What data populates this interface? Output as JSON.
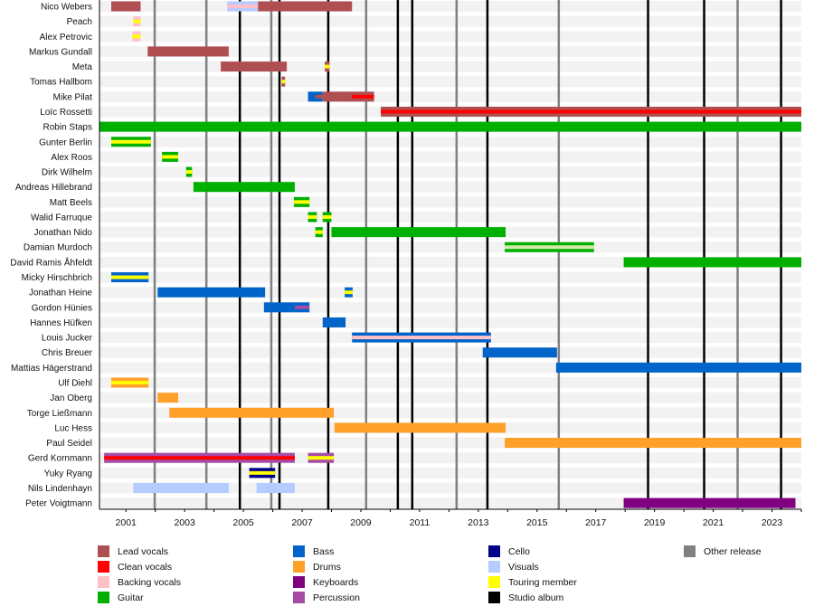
{
  "chart_data": {
    "type": "timeline",
    "x_range": [
      2000.1,
      2024.0
    ],
    "ticks": [
      2001,
      2003,
      2005,
      2007,
      2009,
      2011,
      2013,
      2015,
      2017,
      2019,
      2021,
      2023
    ],
    "minor_ticks_every_year": true,
    "roles": {
      "lead": {
        "label": "Lead vocals",
        "color": "#b04f52"
      },
      "clean": {
        "label": "Clean vocals",
        "color": "#ff0000"
      },
      "backing": {
        "label": "Backing vocals",
        "color": "#ffc0c8"
      },
      "guitar": {
        "label": "Guitar",
        "color": "#00b000"
      },
      "bass": {
        "label": "Bass",
        "color": "#0064c8"
      },
      "drums": {
        "label": "Drums",
        "color": "#ffa02a"
      },
      "keyboards": {
        "label": "Keyboards",
        "color": "#800080"
      },
      "percussion": {
        "label": "Percussion",
        "color": "#a64ca6"
      },
      "cello": {
        "label": "Cello",
        "color": "#00008b"
      },
      "visuals": {
        "label": "Visuals",
        "color": "#b4ccff"
      },
      "touring": {
        "label": "Touring member",
        "color": "#ffff00"
      },
      "studio": {
        "label": "Studio album",
        "color": "#000000"
      },
      "other": {
        "label": "Other release",
        "color": "#808080"
      }
    },
    "legend_columns": [
      [
        "lead",
        "clean",
        "backing",
        "guitar"
      ],
      [
        "bass",
        "drums",
        "keyboards",
        "percussion"
      ],
      [
        "cello",
        "visuals",
        "touring",
        "studio"
      ],
      [
        "other"
      ]
    ],
    "studio_albums": [
      2004.88,
      2006.23,
      2007.89,
      2010.26,
      2010.75,
      2013.31,
      2018.78,
      2020.69,
      2023.31
    ],
    "other_releases": [
      2001.98,
      2003.74,
      2005.95,
      2009.18,
      2012.26,
      2015.74,
      2021.83
    ],
    "members": [
      {
        "name": "Nico Webers",
        "bars": [
          {
            "role": "lead",
            "start": 2000.5,
            "end": 2001.5
          },
          {
            "role": "visuals",
            "start": 2004.45,
            "end": 2005.5,
            "stripe": "backing"
          },
          {
            "role": "lead",
            "start": 2005.5,
            "end": 2008.7
          }
        ]
      },
      {
        "name": "Peach",
        "bars": [
          {
            "role": "backing",
            "start": 2001.25,
            "end": 2001.5,
            "stripe": "touring"
          }
        ]
      },
      {
        "name": "Alex Petrovic",
        "bars": [
          {
            "role": "backing",
            "start": 2001.22,
            "end": 2001.5,
            "stripe": "touring"
          }
        ]
      },
      {
        "name": "Markus Gundall",
        "bars": [
          {
            "role": "lead",
            "start": 2001.74,
            "end": 2004.5
          }
        ]
      },
      {
        "name": "Meta",
        "bars": [
          {
            "role": "lead",
            "start": 2004.23,
            "end": 2006.48
          },
          {
            "role": "lead",
            "start": 2007.77,
            "end": 2007.93,
            "stripe": "touring"
          }
        ]
      },
      {
        "name": "Tomas Hallbom",
        "bars": [
          {
            "role": "lead",
            "start": 2006.3,
            "end": 2006.42,
            "stripe": "touring"
          }
        ]
      },
      {
        "name": "Mike Pilat",
        "bars": [
          {
            "role": "bass",
            "start": 2007.2,
            "end": 2007.7
          },
          {
            "role": "lead",
            "start": 2007.7,
            "end": 2009.45
          },
          {
            "role": "lead",
            "start": 2007.45,
            "end": 2007.7,
            "thin": true
          },
          {
            "role": "clean",
            "start": 2008.7,
            "end": 2009.45,
            "thin": true
          }
        ]
      },
      {
        "name": "Loïc Rossetti",
        "bars": [
          {
            "role": "lead",
            "start": 2009.68,
            "end": 2024.0,
            "stripe": "clean"
          }
        ]
      },
      {
        "name": "Robin Staps",
        "bars": [
          {
            "role": "guitar",
            "start": 2000.1,
            "end": 2024.0
          }
        ]
      },
      {
        "name": "Gunter Berlin",
        "bars": [
          {
            "role": "guitar",
            "start": 2000.5,
            "end": 2001.85,
            "stripe": "touring"
          }
        ]
      },
      {
        "name": "Alex Roos",
        "bars": [
          {
            "role": "guitar",
            "start": 2002.23,
            "end": 2002.78,
            "stripe": "touring"
          }
        ]
      },
      {
        "name": "Dirk Wilhelm",
        "bars": [
          {
            "role": "guitar",
            "start": 2003.05,
            "end": 2003.25,
            "stripe": "touring"
          }
        ]
      },
      {
        "name": "Andreas Hillebrand",
        "bars": [
          {
            "role": "guitar",
            "start": 2003.3,
            "end": 2006.75
          }
        ]
      },
      {
        "name": "Matt Beels",
        "bars": [
          {
            "role": "guitar",
            "start": 2006.72,
            "end": 2007.25,
            "stripe": "touring"
          }
        ]
      },
      {
        "name": "Walid Farruque",
        "bars": [
          {
            "role": "guitar",
            "start": 2007.2,
            "end": 2007.5,
            "stripe": "touring"
          },
          {
            "role": "guitar",
            "start": 2007.7,
            "end": 2008.0,
            "stripe": "touring"
          }
        ]
      },
      {
        "name": "Jonathan Nido",
        "bars": [
          {
            "role": "guitar",
            "start": 2007.45,
            "end": 2007.7,
            "stripe": "touring"
          },
          {
            "role": "guitar",
            "start": 2008.0,
            "end": 2013.93
          }
        ]
      },
      {
        "name": "Damian Murdoch",
        "bars": [
          {
            "role": "guitar",
            "start": 2013.9,
            "end": 2016.94,
            "stripe_color": "#d4eaa8"
          }
        ]
      },
      {
        "name": "David Ramis Åhfeldt",
        "bars": [
          {
            "role": "guitar",
            "start": 2017.95,
            "end": 2024.0
          }
        ]
      },
      {
        "name": "Micky Hirschbrich",
        "bars": [
          {
            "role": "bass",
            "start": 2000.5,
            "end": 2001.77,
            "stripe": "touring"
          }
        ]
      },
      {
        "name": "Jonathan Heine",
        "bars": [
          {
            "role": "bass",
            "start": 2002.08,
            "end": 2005.74
          },
          {
            "role": "bass",
            "start": 2008.45,
            "end": 2008.72,
            "stripe": "touring"
          }
        ]
      },
      {
        "name": "Gordon Hünies",
        "bars": [
          {
            "role": "bass",
            "start": 2005.7,
            "end": 2007.25
          },
          {
            "role": "percussion",
            "start": 2006.75,
            "end": 2007.25,
            "thin": true
          }
        ]
      },
      {
        "name": "Hannes Hüfken",
        "bars": [
          {
            "role": "bass",
            "start": 2007.7,
            "end": 2008.48
          }
        ]
      },
      {
        "name": "Louis Jucker",
        "bars": [
          {
            "role": "bass",
            "start": 2008.7,
            "end": 2013.43,
            "stripe": "backing"
          }
        ]
      },
      {
        "name": "Chris Breuer",
        "bars": [
          {
            "role": "bass",
            "start": 2013.15,
            "end": 2015.68
          }
        ]
      },
      {
        "name": "Mattias Hägerstrand",
        "bars": [
          {
            "role": "bass",
            "start": 2015.65,
            "end": 2024.0
          }
        ]
      },
      {
        "name": "Ulf Diehl",
        "bars": [
          {
            "role": "drums",
            "start": 2000.5,
            "end": 2001.77,
            "stripe": "touring"
          }
        ]
      },
      {
        "name": "Jan Oberg",
        "bars": [
          {
            "role": "drums",
            "start": 2002.08,
            "end": 2002.78
          }
        ]
      },
      {
        "name": "Torge Ließmann",
        "bars": [
          {
            "role": "drums",
            "start": 2002.48,
            "end": 2008.08
          }
        ]
      },
      {
        "name": "Luc Hess",
        "bars": [
          {
            "role": "drums",
            "start": 2008.1,
            "end": 2013.93
          }
        ]
      },
      {
        "name": "Paul Seidel",
        "bars": [
          {
            "role": "drums",
            "start": 2013.9,
            "end": 2024.0
          }
        ]
      },
      {
        "name": "Gerd Kornmann",
        "bars": [
          {
            "role": "percussion",
            "start": 2000.26,
            "end": 2006.75,
            "stripe": "clean"
          },
          {
            "role": "percussion",
            "start": 2007.2,
            "end": 2008.08,
            "stripe": "touring"
          }
        ]
      },
      {
        "name": "Yuky Ryang",
        "bars": [
          {
            "role": "cello",
            "start": 2005.2,
            "end": 2006.08,
            "stripe": "touring"
          }
        ]
      },
      {
        "name": "Nils Lindenhayn",
        "bars": [
          {
            "role": "visuals",
            "start": 2001.25,
            "end": 2004.5
          },
          {
            "role": "visuals",
            "start": 2005.45,
            "end": 2006.75
          }
        ]
      },
      {
        "name": "Peter Voigtmann",
        "bars": [
          {
            "role": "keyboards",
            "start": 2017.95,
            "end": 2023.8
          }
        ]
      }
    ]
  }
}
